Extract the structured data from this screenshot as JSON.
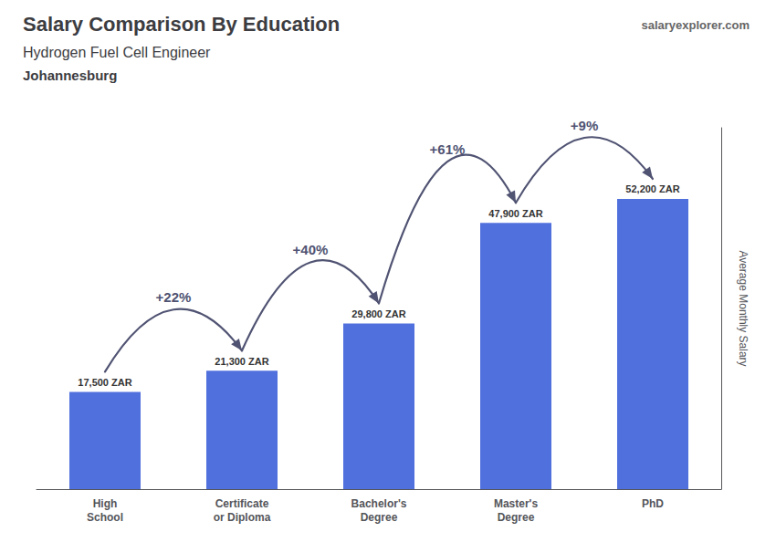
{
  "chart_data": {
    "type": "bar",
    "title": "Salary Comparison By Education",
    "subtitle": "Hydrogen Fuel Cell Engineer",
    "city": "Johannesburg",
    "source": "salaryexplorer.com",
    "ylabel": "Average Monthly Salary",
    "categories": [
      "High\nSchool",
      "Certificate\nor Diploma",
      "Bachelor's\nDegree",
      "Master's\nDegree",
      "PhD"
    ],
    "values": [
      17500,
      21300,
      29800,
      47900,
      52200
    ],
    "value_labels": [
      "17,500 ZAR",
      "21,300 ZAR",
      "29,800 ZAR",
      "47,900 ZAR",
      "52,200 ZAR"
    ],
    "data_labels": true,
    "ylim": [
      0,
      65000
    ],
    "tick_labels": "x",
    "grid": false,
    "annotations": [
      {
        "text": "+22%",
        "from": "High\nSchool",
        "to": "Certificate\nor Diploma"
      },
      {
        "text": "+40%",
        "from": "Certificate\nor Diploma",
        "to": "Bachelor's\nDegree"
      },
      {
        "text": "+61%",
        "from": "Bachelor's\nDegree",
        "to": "Master's\nDegree"
      },
      {
        "text": "+9%",
        "from": "Master's\nDegree",
        "to": "PhD"
      }
    ]
  }
}
